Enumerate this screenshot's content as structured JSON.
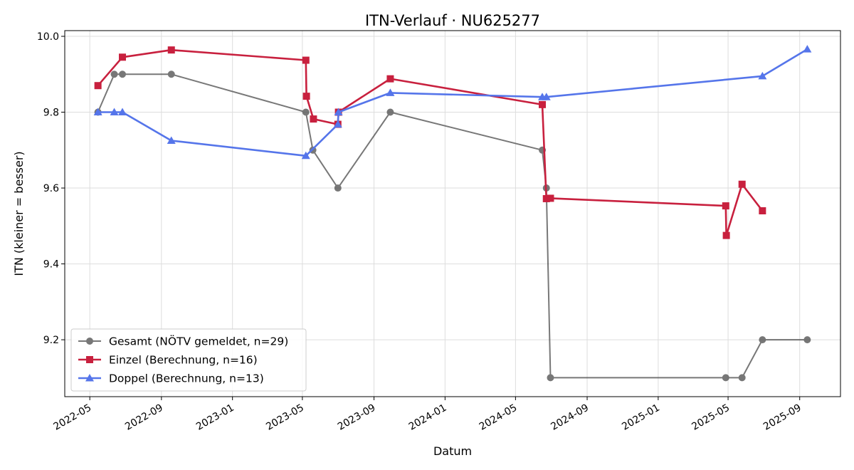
{
  "chart_data": {
    "type": "line",
    "title": "ITN-Verlauf · NU625277",
    "xlabel": "Datum",
    "ylabel": "ITN  (kleiner = besser)",
    "x_axis": "date",
    "xlim": [
      "2022-03-19",
      "2025-11-10"
    ],
    "ylim": [
      9.05,
      10.015
    ],
    "yticks": [
      9.2,
      9.4,
      9.6,
      9.8,
      10.0
    ],
    "ytick_labels": [
      "9.2",
      "9.4",
      "9.6",
      "9.8",
      "10.0"
    ],
    "xticks": [
      "2022-05-01",
      "2022-09-01",
      "2023-01-01",
      "2023-05-01",
      "2023-09-01",
      "2024-01-01",
      "2024-05-01",
      "2024-09-01",
      "2025-01-01",
      "2025-05-01",
      "2025-09-01"
    ],
    "xtick_labels": [
      "2022-05",
      "2022-09",
      "2023-01",
      "2023-05",
      "2023-09",
      "2024-01",
      "2024-05",
      "2024-09",
      "2025-01",
      "2025-05",
      "2025-09"
    ],
    "grid": true,
    "legend_position": "lower-left",
    "series": [
      {
        "name": "Gesamt (NÖTV gemeldet, n=29)",
        "color": "#444444",
        "marker": "circle",
        "points": [
          [
            "2022-05-15",
            9.8
          ],
          [
            "2022-06-12",
            9.9
          ],
          [
            "2022-06-26",
            9.9
          ],
          [
            "2022-09-18",
            9.9
          ],
          [
            "2023-05-07",
            9.8
          ],
          [
            "2023-05-19",
            9.7
          ],
          [
            "2023-07-01",
            9.6
          ],
          [
            "2023-09-29",
            9.8
          ],
          [
            "2024-06-16",
            9.7
          ],
          [
            "2024-06-23",
            9.6
          ],
          [
            "2024-06-30",
            9.1
          ],
          [
            "2025-04-27",
            9.1
          ],
          [
            "2025-05-25",
            9.1
          ],
          [
            "2025-06-29",
            9.2
          ],
          [
            "2025-09-14",
            9.2
          ]
        ]
      },
      {
        "name": "Einzel (Berechnung, n=16)",
        "color": "#c8203e",
        "marker": "square",
        "points": [
          [
            "2022-05-15",
            9.87
          ],
          [
            "2022-06-26",
            9.945
          ],
          [
            "2022-09-18",
            9.964
          ],
          [
            "2023-05-07",
            9.937
          ],
          [
            "2023-05-08",
            9.842
          ],
          [
            "2023-05-20",
            9.782
          ],
          [
            "2023-07-01",
            9.768
          ],
          [
            "2023-07-02",
            9.8
          ],
          [
            "2023-09-29",
            9.888
          ],
          [
            "2024-06-16",
            9.82
          ],
          [
            "2024-06-23",
            9.572
          ],
          [
            "2024-06-30",
            9.573
          ],
          [
            "2025-04-27",
            9.553
          ],
          [
            "2025-04-28",
            9.475
          ],
          [
            "2025-05-25",
            9.61
          ],
          [
            "2025-06-29",
            9.54
          ]
        ]
      },
      {
        "name": "Doppel (Berechnung, n=13)",
        "color": "#5575ea",
        "marker": "triangle",
        "points": [
          [
            "2022-05-15",
            9.8
          ],
          [
            "2022-06-12",
            9.8
          ],
          [
            "2022-06-26",
            9.8
          ],
          [
            "2022-09-18",
            9.725
          ],
          [
            "2023-05-07",
            9.685
          ],
          [
            "2023-07-01",
            9.768
          ],
          [
            "2023-07-02",
            9.8
          ],
          [
            "2023-09-29",
            9.851
          ],
          [
            "2024-06-16",
            9.84
          ],
          [
            "2024-06-23",
            9.84
          ],
          [
            "2025-06-29",
            9.895
          ],
          [
            "2025-09-14",
            9.966
          ]
        ]
      }
    ]
  }
}
